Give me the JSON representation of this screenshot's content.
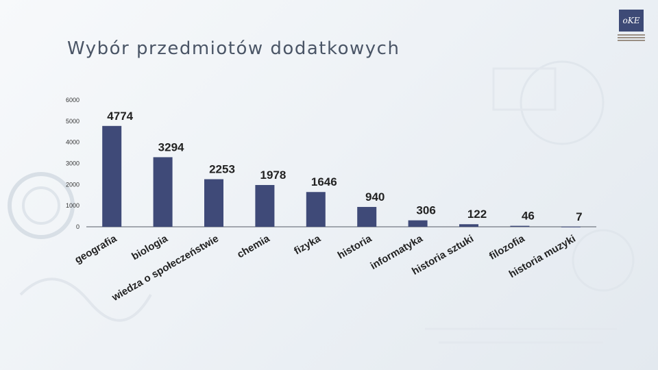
{
  "title": "Wybór przedmiotów dodatkowych",
  "logo": {
    "text": "oKE"
  },
  "colors": {
    "bar": "#3f4a78",
    "axis": "#555b66",
    "text": "#222222"
  },
  "chart_data": {
    "type": "bar",
    "title": "",
    "xlabel": "",
    "ylabel": "",
    "ylim": [
      0,
      6000
    ],
    "yticks": [
      0,
      1000,
      2000,
      3000,
      4000,
      5000,
      6000
    ],
    "grid": false,
    "legend": "none",
    "categories": [
      "geografia",
      "biologia",
      "wiedza o społeczeństwie",
      "chemia",
      "fizyka",
      "historia",
      "informatyka",
      "historia sztuki",
      "filozofia",
      "historia muzyki"
    ],
    "values": [
      4774,
      3294,
      2253,
      1978,
      1646,
      940,
      306,
      122,
      46,
      7
    ]
  }
}
